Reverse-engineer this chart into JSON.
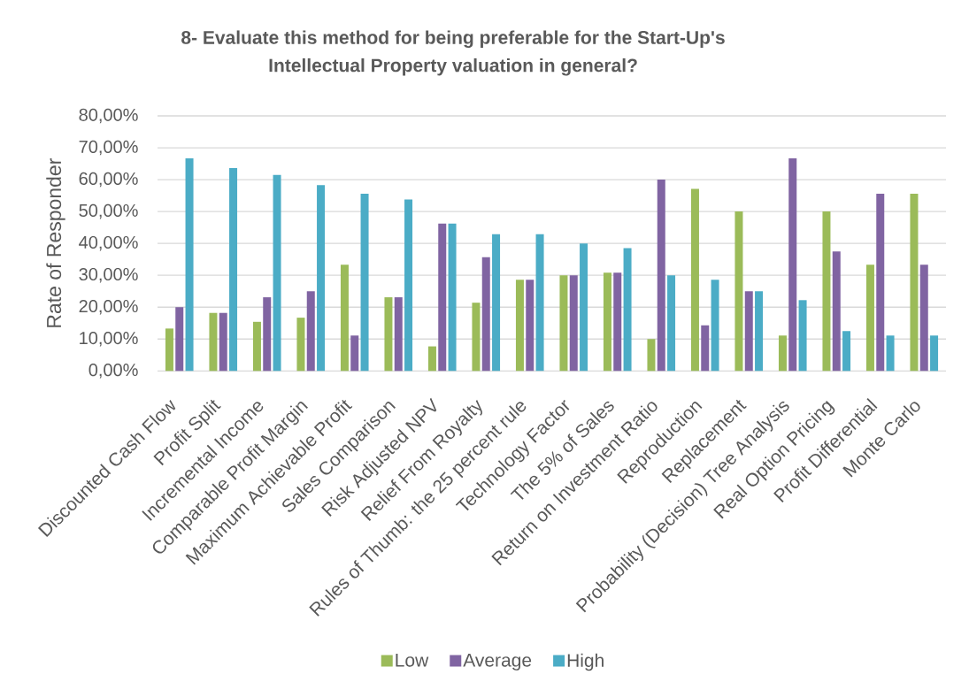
{
  "chart_data": {
    "type": "bar",
    "title": "8- Evaluate this method for being preferable for the Start-Up's Intellectual Property valuation in general?",
    "ylabel": "Rate of Responder",
    "categories": [
      "Discounted Cash Flow",
      "Profit Split",
      "Incremental Income",
      "Comparable Profit Margin",
      "Maximum Achievable Profit",
      "Sales Comparison",
      "Risk Adjusted NPV",
      "Relief From Royalty",
      "Rules of Thumb: the 25 percent rule",
      "Technology Factor",
      "The 5% of Sales",
      "Return on Investment Ratio",
      "Reproduction",
      "Replacement",
      "Probability (Decision) Tree Analysis",
      "Real Option Pricing",
      "Profit Differential",
      "Monte Carlo"
    ],
    "series": [
      {
        "name": "Low",
        "color": "#9bbb59",
        "values": [
          13.3,
          18.2,
          15.4,
          16.7,
          33.3,
          23.1,
          7.7,
          21.4,
          28.6,
          30.0,
          30.8,
          10.0,
          57.1,
          50.0,
          11.1,
          50.0,
          33.3,
          55.6
        ]
      },
      {
        "name": "Average",
        "color": "#8064a2",
        "values": [
          20.0,
          18.2,
          23.1,
          25.0,
          11.1,
          23.1,
          46.2,
          35.7,
          28.6,
          30.0,
          30.8,
          60.0,
          14.3,
          25.0,
          66.7,
          37.5,
          55.6,
          33.3
        ]
      },
      {
        "name": "High",
        "color": "#4bacc6",
        "values": [
          66.7,
          63.6,
          61.5,
          58.3,
          55.6,
          53.8,
          46.2,
          42.9,
          42.9,
          40.0,
          38.5,
          30.0,
          28.6,
          25.0,
          22.2,
          12.5,
          11.1,
          11.1
        ]
      }
    ],
    "ylim": [
      0,
      80
    ],
    "yticks": [
      {
        "value": 0,
        "label": "0,00%"
      },
      {
        "value": 10,
        "label": "10,00%"
      },
      {
        "value": 20,
        "label": "20,00%"
      },
      {
        "value": 30,
        "label": "30,00%"
      },
      {
        "value": 40,
        "label": "40,00%"
      },
      {
        "value": 50,
        "label": "50,00%"
      },
      {
        "value": 60,
        "label": "60,00%"
      },
      {
        "value": 70,
        "label": "70,00%"
      },
      {
        "value": 80,
        "label": "80,00%"
      }
    ],
    "grid": "y",
    "legend": "bottom"
  }
}
